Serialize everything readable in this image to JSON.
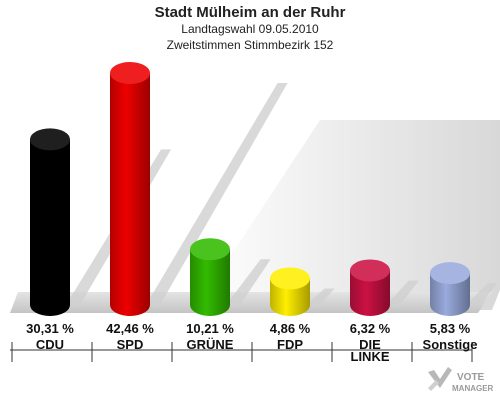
{
  "header": {
    "title": "Stadt Mülheim an der Ruhr",
    "subtitle1": "Landtagswahl 09.05.2010",
    "subtitle2": "Zweitstimmen Stimmbezirk 152"
  },
  "chart_data": {
    "type": "bar",
    "title": "Stadt Mülheim an der Ruhr",
    "subtitle": "Landtagswahl 09.05.2010 / Zweitstimmen Stimmbezirk 152",
    "categories": [
      "CDU",
      "SPD",
      "GRÜNE",
      "FDP",
      "DIE LINKE",
      "Sonstige"
    ],
    "category_lines": [
      [
        "CDU"
      ],
      [
        "SPD"
      ],
      [
        "GRÜNE"
      ],
      [
        "FDP"
      ],
      [
        "DIE",
        "LINKE"
      ],
      [
        "Sonstige"
      ]
    ],
    "values": [
      30.31,
      42.46,
      10.21,
      4.86,
      6.32,
      5.83
    ],
    "value_labels": [
      "30,31 %",
      "42,46 %",
      "10,21 %",
      "4,86 %",
      "6,32 %",
      "5,83 %"
    ],
    "colors": [
      "#000000",
      "#ee0000",
      "#33bb00",
      "#ffee00",
      "#cc1144",
      "#99aadd"
    ],
    "unit": "%",
    "ylim": [
      0,
      42.46
    ],
    "grid": false,
    "legend": "none"
  },
  "logo": {
    "line1": "VOTE",
    "line2": "MANAGER"
  }
}
